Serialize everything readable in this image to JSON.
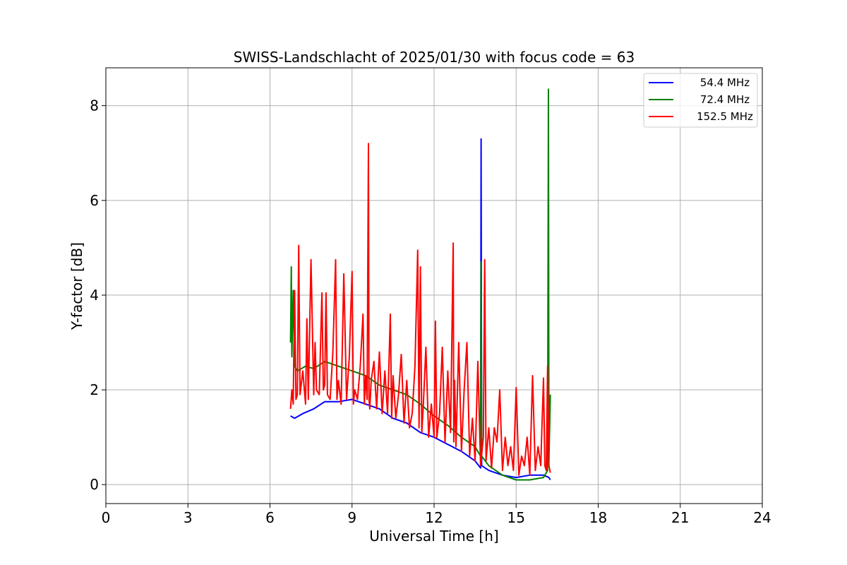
{
  "chart_data": {
    "type": "line",
    "title": "SWISS-Landschlacht of 2025/01/30 with focus code = 63",
    "xlabel": "Universal Time [h]",
    "ylabel": "Y-factor [dB]",
    "xlim": [
      0,
      24
    ],
    "ylim": [
      -0.4,
      8.8
    ],
    "xticks": [
      0,
      3,
      6,
      9,
      12,
      15,
      18,
      21,
      24
    ],
    "yticks": [
      0,
      2,
      4,
      6,
      8
    ],
    "xtick_labels": [
      "0",
      "3",
      "6",
      "9",
      "12",
      "15",
      "18",
      "21",
      "24"
    ],
    "ytick_labels": [
      "0",
      "2",
      "4",
      "6",
      "8"
    ],
    "grid": true,
    "legend_position": "top-right",
    "series": [
      {
        "name": "54.4 MHz",
        "color": "#0000ff",
        "x": [
          6.75,
          6.9,
          7.2,
          7.6,
          8.0,
          8.5,
          9.0,
          9.5,
          10.0,
          10.5,
          11.0,
          11.5,
          12.0,
          12.5,
          13.0,
          13.5,
          13.7,
          13.72,
          13.74,
          14.0,
          14.5,
          15.0,
          15.5,
          16.0,
          16.2,
          16.25
        ],
        "y": [
          1.45,
          1.4,
          1.5,
          1.6,
          1.75,
          1.75,
          1.8,
          1.7,
          1.6,
          1.4,
          1.3,
          1.1,
          1.0,
          0.85,
          0.7,
          0.5,
          0.35,
          7.3,
          0.4,
          0.3,
          0.2,
          0.15,
          0.2,
          0.2,
          0.15,
          0.1
        ]
      },
      {
        "name": "72.4 MHz",
        "color": "#008000",
        "x": [
          6.75,
          6.78,
          6.8,
          6.85,
          6.9,
          7.0,
          7.3,
          7.6,
          8.0,
          8.5,
          9.0,
          9.5,
          10.0,
          10.5,
          11.0,
          11.5,
          12.0,
          12.5,
          13.0,
          13.5,
          13.7,
          13.72,
          13.74,
          14.0,
          14.5,
          15.0,
          15.5,
          16.0,
          16.15,
          16.18,
          16.2,
          16.25
        ],
        "y": [
          3.0,
          4.6,
          2.7,
          4.1,
          2.5,
          2.4,
          2.5,
          2.45,
          2.6,
          2.5,
          2.4,
          2.3,
          2.1,
          2.0,
          1.9,
          1.7,
          1.45,
          1.25,
          1.0,
          0.8,
          0.6,
          4.7,
          0.6,
          0.4,
          0.2,
          0.1,
          0.1,
          0.15,
          0.3,
          8.35,
          0.5,
          1.9
        ]
      },
      {
        "name": "152.5 MHz",
        "color": "#ff0000",
        "x": [
          6.75,
          6.8,
          6.85,
          6.9,
          6.95,
          7.0,
          7.05,
          7.1,
          7.2,
          7.3,
          7.35,
          7.4,
          7.5,
          7.6,
          7.65,
          7.7,
          7.8,
          7.9,
          7.95,
          8.0,
          8.05,
          8.1,
          8.2,
          8.3,
          8.4,
          8.45,
          8.5,
          8.6,
          8.7,
          8.8,
          8.9,
          9.0,
          9.05,
          9.1,
          9.2,
          9.3,
          9.4,
          9.45,
          9.5,
          9.55,
          9.6,
          9.62,
          9.65,
          9.7,
          9.8,
          9.9,
          10.0,
          10.1,
          10.2,
          10.3,
          10.4,
          10.45,
          10.5,
          10.6,
          10.7,
          10.8,
          10.9,
          11.0,
          11.1,
          11.2,
          11.3,
          11.4,
          11.45,
          11.5,
          11.55,
          11.6,
          11.7,
          11.8,
          11.9,
          12.0,
          12.05,
          12.1,
          12.2,
          12.3,
          12.4,
          12.5,
          12.6,
          12.7,
          12.72,
          12.75,
          12.8,
          12.9,
          13.0,
          13.1,
          13.2,
          13.3,
          13.4,
          13.5,
          13.6,
          13.7,
          13.8,
          13.85,
          13.9,
          14.0,
          14.1,
          14.2,
          14.3,
          14.4,
          14.5,
          14.6,
          14.7,
          14.8,
          14.9,
          15.0,
          15.1,
          15.2,
          15.3,
          15.4,
          15.5,
          15.6,
          15.7,
          15.8,
          15.9,
          16.0,
          16.05,
          16.1,
          16.15,
          16.2,
          16.25
        ],
        "y": [
          1.6,
          2.0,
          1.7,
          4.1,
          1.8,
          1.9,
          5.05,
          1.9,
          2.4,
          1.7,
          3.5,
          1.8,
          4.75,
          1.9,
          3.0,
          2.0,
          1.9,
          4.05,
          2.0,
          2.1,
          4.05,
          1.9,
          1.8,
          2.8,
          4.75,
          1.8,
          2.2,
          1.7,
          4.45,
          1.8,
          2.7,
          4.5,
          1.7,
          2.0,
          1.8,
          2.5,
          3.6,
          1.7,
          2.3,
          1.8,
          7.2,
          1.8,
          1.6,
          2.2,
          2.6,
          1.6,
          2.8,
          1.5,
          2.4,
          1.5,
          3.6,
          1.4,
          2.3,
          1.4,
          1.9,
          2.75,
          1.3,
          2.2,
          1.2,
          1.5,
          2.5,
          4.95,
          1.2,
          4.6,
          1.1,
          1.6,
          2.9,
          1.0,
          1.7,
          1.0,
          3.45,
          1.0,
          1.5,
          2.9,
          0.9,
          2.4,
          1.1,
          5.1,
          0.9,
          2.2,
          0.8,
          3.0,
          0.7,
          2.0,
          3.0,
          0.6,
          1.4,
          0.5,
          2.6,
          0.4,
          1.0,
          4.75,
          0.5,
          1.2,
          0.35,
          1.2,
          0.9,
          2.0,
          0.3,
          1.0,
          0.4,
          0.8,
          0.3,
          2.05,
          0.2,
          0.6,
          0.4,
          1.0,
          0.2,
          2.3,
          0.3,
          0.8,
          0.4,
          2.25,
          0.4,
          0.3,
          2.5,
          0.4,
          0.25
        ]
      }
    ]
  }
}
